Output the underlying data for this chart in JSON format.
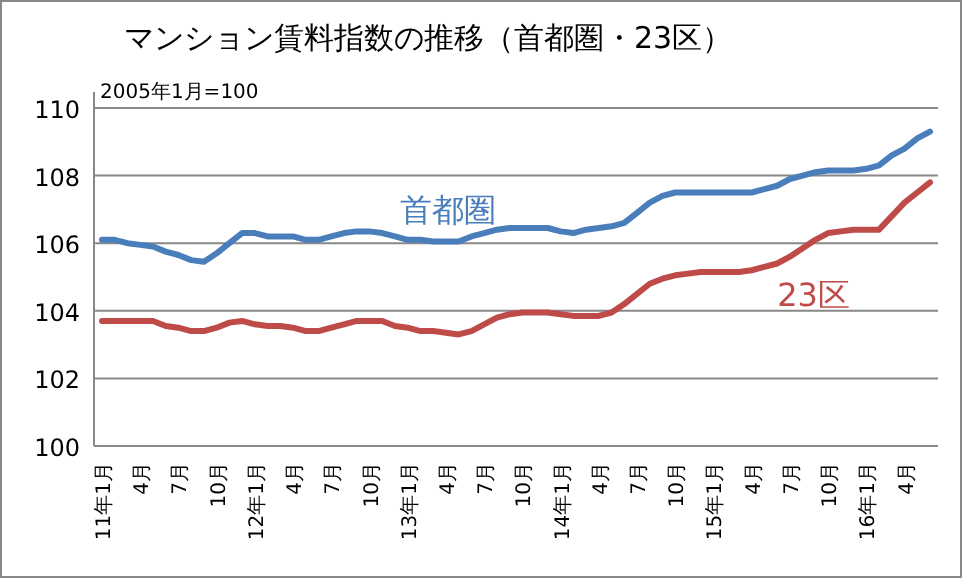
{
  "chart_data": {
    "type": "line",
    "title": "マンション賃料指数の推移（首都圏・23区）",
    "annotations": [
      "2005年1月=100"
    ],
    "categories": [
      "11年1月",
      null,
      null,
      "4月",
      null,
      null,
      "7月",
      null,
      null,
      "10月",
      null,
      null,
      "12年1月",
      null,
      null,
      "4月",
      null,
      null,
      "7月",
      null,
      null,
      "10月",
      null,
      null,
      "13年1月",
      null,
      null,
      "4月",
      null,
      null,
      "7月",
      null,
      null,
      "10月",
      null,
      null,
      "14年1月",
      null,
      null,
      "4月",
      null,
      null,
      "7月",
      null,
      null,
      "10月",
      null,
      null,
      "15年1月",
      null,
      null,
      "4月",
      null,
      null,
      "7月",
      null,
      null,
      "10月",
      null,
      null,
      "16年1月",
      null,
      null,
      "4月",
      null,
      null
    ],
    "series": [
      {
        "name": "首都圏",
        "color": "#4a7ebb",
        "values": [
          106.1,
          106.1,
          106.0,
          105.95,
          105.9,
          105.75,
          105.65,
          105.5,
          105.45,
          105.7,
          106.0,
          106.3,
          106.3,
          106.2,
          106.2,
          106.2,
          106.1,
          106.1,
          106.2,
          106.3,
          106.35,
          106.35,
          106.3,
          106.2,
          106.1,
          106.1,
          106.05,
          106.05,
          106.05,
          106.2,
          106.3,
          106.4,
          106.45,
          106.45,
          106.45,
          106.45,
          106.35,
          106.3,
          106.4,
          106.45,
          106.5,
          106.6,
          106.9,
          107.2,
          107.4,
          107.5,
          107.5,
          107.5,
          107.5,
          107.5,
          107.5,
          107.5,
          107.6,
          107.7,
          107.9,
          108.0,
          108.1,
          108.15,
          108.15,
          108.15,
          108.2,
          108.3,
          108.6,
          108.8,
          109.1,
          109.3
        ]
      },
      {
        "name": "23区",
        "color": "#be4b48",
        "values": [
          103.7,
          103.7,
          103.7,
          103.7,
          103.7,
          103.55,
          103.5,
          103.4,
          103.4,
          103.5,
          103.65,
          103.7,
          103.6,
          103.55,
          103.55,
          103.5,
          103.4,
          103.4,
          103.5,
          103.6,
          103.7,
          103.7,
          103.7,
          103.55,
          103.5,
          103.4,
          103.4,
          103.35,
          103.3,
          103.4,
          103.6,
          103.8,
          103.9,
          103.95,
          103.95,
          103.95,
          103.9,
          103.85,
          103.85,
          103.85,
          103.95,
          104.2,
          104.5,
          104.8,
          104.95,
          105.05,
          105.1,
          105.15,
          105.15,
          105.15,
          105.15,
          105.2,
          105.3,
          105.4,
          105.6,
          105.85,
          106.1,
          106.3,
          106.35,
          106.4,
          106.4,
          106.4,
          106.8,
          107.2,
          107.5,
          107.8
        ]
      }
    ],
    "ylim": [
      100,
      110
    ],
    "yticks": [
      100,
      102,
      104,
      106,
      108,
      110
    ],
    "grid": "y",
    "marker": "none",
    "line_style": "solid"
  }
}
